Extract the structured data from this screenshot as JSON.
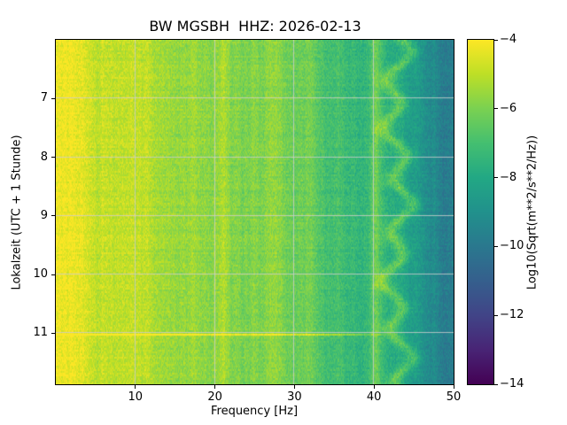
{
  "chart_data": {
    "type": "heatmap",
    "title": "BW MGSBH  HHZ: 2026-02-13",
    "xlabel": "Frequency [Hz]",
    "ylabel": "Lokalzeit (UTC + 1 Stunde)",
    "colorbar_label": "Log10(Sqrt(m**2/s**2/Hz))",
    "xlim": [
      0,
      50
    ],
    "ylim": [
      6.0,
      11.87
    ],
    "clim": [
      -14,
      -4
    ],
    "x_ticks": [
      10,
      20,
      30,
      40,
      50
    ],
    "y_ticks": [
      7,
      8,
      9,
      10,
      11
    ],
    "colorbar_ticks": [
      {
        "value": -4,
        "label": "−4"
      },
      {
        "value": -6,
        "label": "−6"
      },
      {
        "value": -8,
        "label": "−8"
      },
      {
        "value": -10,
        "label": "−10"
      },
      {
        "value": -12,
        "label": "−12"
      },
      {
        "value": -14,
        "label": "−14"
      }
    ],
    "grid": true,
    "colormap": "viridis",
    "colormap_stops": [
      {
        "t": 0.0,
        "color": "#440154"
      },
      {
        "t": 0.1,
        "color": "#482475"
      },
      {
        "t": 0.2,
        "color": "#414487"
      },
      {
        "t": 0.3,
        "color": "#355f8d"
      },
      {
        "t": 0.4,
        "color": "#2a788e"
      },
      {
        "t": 0.5,
        "color": "#21918c"
      },
      {
        "t": 0.6,
        "color": "#22a884"
      },
      {
        "t": 0.7,
        "color": "#44bf70"
      },
      {
        "t": 0.8,
        "color": "#7ad151"
      },
      {
        "t": 0.9,
        "color": "#bddf26"
      },
      {
        "t": 1.0,
        "color": "#fde725"
      }
    ],
    "spectral_profile": {
      "freq_hz": [
        0,
        1,
        3,
        6,
        10,
        14,
        18,
        22,
        26,
        30,
        33,
        36,
        38,
        40,
        42,
        44,
        46,
        48,
        50
      ],
      "log10_amplitude": [
        -4.25,
        -4.35,
        -4.55,
        -4.8,
        -5.05,
        -5.35,
        -5.6,
        -5.8,
        -6.0,
        -6.2,
        -6.45,
        -6.8,
        -7.1,
        -7.4,
        -7.7,
        -8.2,
        -8.8,
        -9.5,
        -10.0
      ]
    },
    "features": [
      {
        "type": "vertical-band",
        "freq": 21.0,
        "width_hz": 0.45,
        "boost": 0.55,
        "wiggle": false,
        "description": "persistent narrowband line near 21 Hz"
      },
      {
        "type": "vertical-band",
        "freq": 27.6,
        "width_hz": 0.6,
        "boost": 0.45,
        "wiggle": false,
        "description": "faint narrowband line near 27.5 Hz"
      },
      {
        "type": "vertical-band",
        "freq": 36.8,
        "width_hz": 1.6,
        "boost": -0.45,
        "wiggle": false,
        "description": "slightly quieter band near 37 Hz"
      },
      {
        "type": "vertical-band",
        "freq": 40.3,
        "width_hz": 0.5,
        "boost": 0.85,
        "wiggle": false,
        "description": "narrowband line at 40 Hz"
      },
      {
        "type": "vertical-band",
        "freq": 43.0,
        "width_hz": 0.7,
        "boost": 1.5,
        "wiggle": true,
        "description": "bright meandering tonal near 43 Hz"
      },
      {
        "type": "horizontal-event",
        "time": 11.02,
        "half_duration_hours": 0.025,
        "freq_max": 43,
        "boost": 1.7,
        "description": "bright broadband transient shortly after 11:00 local time"
      }
    ]
  }
}
